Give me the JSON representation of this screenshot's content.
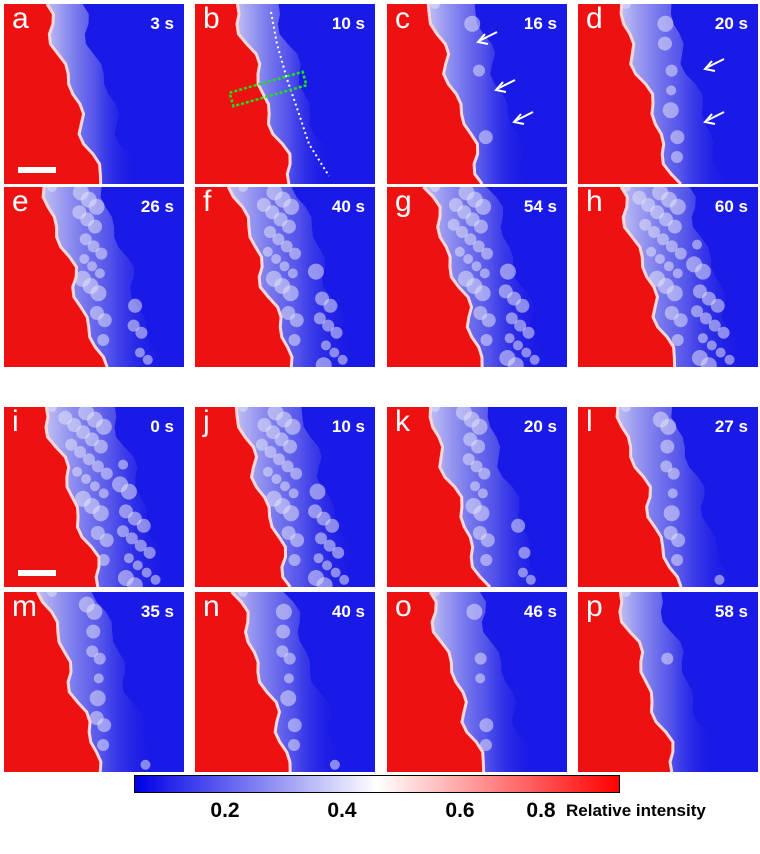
{
  "panels": [
    {
      "label": "a",
      "time": "3 s",
      "texture": 0.0,
      "fill": 0.05
    },
    {
      "label": "b",
      "time": "10 s",
      "texture": 0.0,
      "fill": 0.1
    },
    {
      "label": "c",
      "time": "16 s",
      "texture": 0.1,
      "fill": 0.15
    },
    {
      "label": "d",
      "time": "20 s",
      "texture": 0.2,
      "fill": 0.18
    },
    {
      "label": "e",
      "time": "26 s",
      "texture": 0.6,
      "fill": 0.25
    },
    {
      "label": "f",
      "time": "40 s",
      "texture": 0.8,
      "fill": 0.3
    },
    {
      "label": "g",
      "time": "54 s",
      "texture": 0.9,
      "fill": 0.3
    },
    {
      "label": "h",
      "time": "60 s",
      "texture": 1.0,
      "fill": 0.35
    },
    {
      "label": "i",
      "time": "0 s",
      "texture": 1.0,
      "fill": 0.35
    },
    {
      "label": "j",
      "time": "10 s",
      "texture": 0.9,
      "fill": 0.32
    },
    {
      "label": "k",
      "time": "20 s",
      "texture": 0.5,
      "fill": 0.25
    },
    {
      "label": "l",
      "time": "27 s",
      "texture": 0.3,
      "fill": 0.22
    },
    {
      "label": "m",
      "time": "35 s",
      "texture": 0.3,
      "fill": 0.22
    },
    {
      "label": "n",
      "time": "40 s",
      "texture": 0.25,
      "fill": 0.2
    },
    {
      "label": "o",
      "time": "46 s",
      "texture": 0.15,
      "fill": 0.18
    },
    {
      "label": "p",
      "time": "58 s",
      "texture": 0.05,
      "fill": 0.1
    }
  ],
  "colorbar": {
    "ticks": [
      "0.2",
      "0.4",
      "0.6",
      "0.8"
    ],
    "title": "Relative intensity",
    "colors": {
      "low": "#0000e6",
      "mid": "#ffffff",
      "high": "#ff0000"
    }
  }
}
